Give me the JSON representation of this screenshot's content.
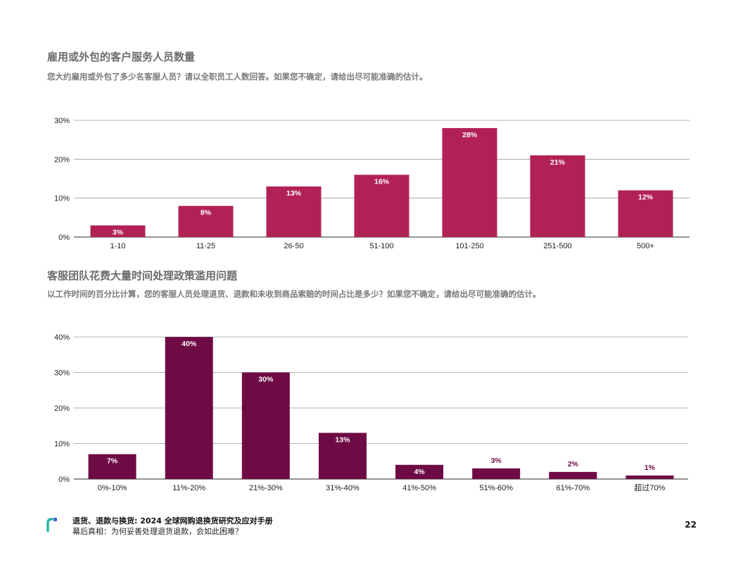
{
  "footer": {
    "report_title": "退货、退款与换货: 2024 全球网购退换货研究及应对手册",
    "report_subtitle": "幕后真相：为何妥善处理退货退款，会如此困难？",
    "page_number": "22"
  },
  "chart_data": [
    {
      "type": "bar",
      "title": "雇用或外包的客户服务人员数量",
      "subtitle": "您大约雇用或外包了多少名客服人员？请以全职员工人数回答。如果您不确定，请给出尽可能准确的估计。",
      "categories": [
        "1-10",
        "11-25",
        "26-50",
        "51-100",
        "101-250",
        "251-500",
        "500+"
      ],
      "values": [
        3,
        8,
        13,
        16,
        28,
        21,
        12
      ],
      "value_labels": [
        "3%",
        "8%",
        "13%",
        "16%",
        "28%",
        "21%",
        "12%"
      ],
      "ylim": [
        0,
        30
      ],
      "yticks": [
        0,
        10,
        20,
        30
      ],
      "ytick_labels": [
        "0%",
        "10%",
        "20%",
        "30%"
      ],
      "grid": true,
      "color": "#b22156"
    },
    {
      "type": "bar",
      "title": "客服团队花费大量时间处理政策滥用问题",
      "subtitle": "以工作时间的百分比计算，您的客服人员处理退货、退款和未收到商品索赔的时间占比是多少？如果您不确定，请给出尽可能准确的估计。",
      "categories": [
        "0%-10%",
        "11%-20%",
        "21%-30%",
        "31%-40%",
        "41%-50%",
        "51%-60%",
        "61%-70%",
        "超过70%"
      ],
      "values": [
        7,
        40,
        30,
        13,
        4,
        3,
        2,
        1
      ],
      "value_labels": [
        "7%",
        "40%",
        "30%",
        "13%",
        "4%",
        "3%",
        "2%",
        "1%"
      ],
      "ylim": [
        0,
        40
      ],
      "yticks": [
        0,
        10,
        20,
        30,
        40
      ],
      "ytick_labels": [
        "0%",
        "10%",
        "20%",
        "30%",
        "40%"
      ],
      "grid": true,
      "color": "#6e0b45"
    }
  ]
}
